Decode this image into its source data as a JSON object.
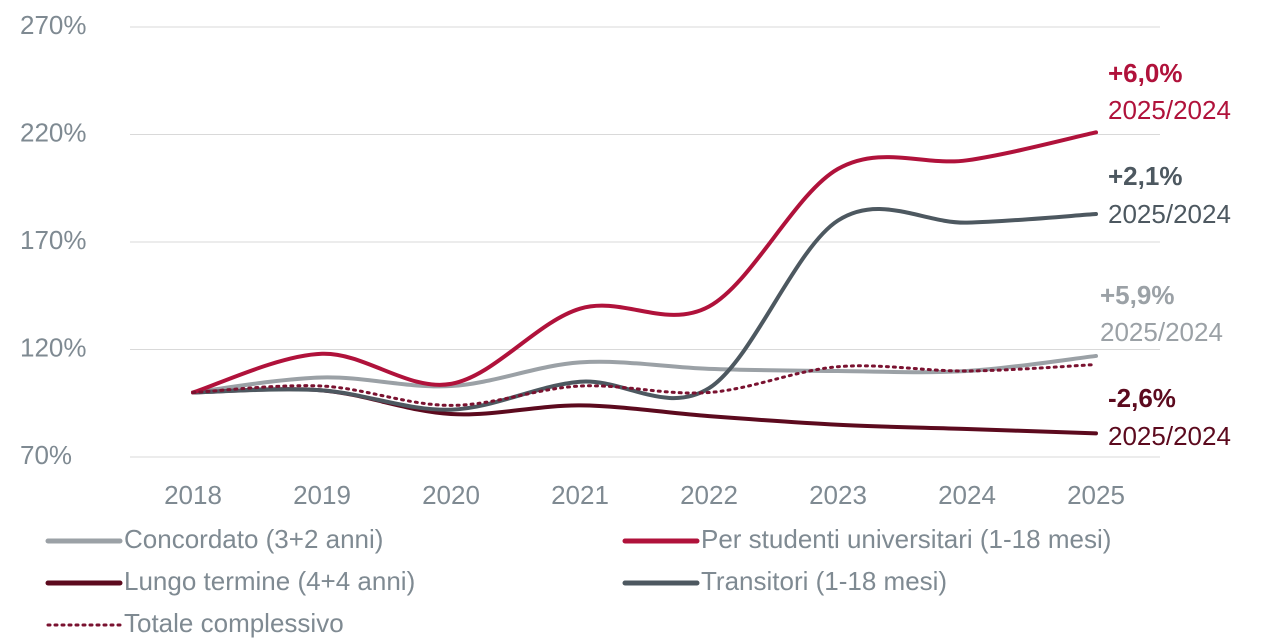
{
  "chart_data": {
    "type": "line",
    "x": [
      "2018",
      "2019",
      "2020",
      "2021",
      "2022",
      "2023",
      "2024",
      "2025"
    ],
    "series": [
      {
        "name": "Concordato (3+2 anni)",
        "color": "#9ba1a6",
        "style": "solid",
        "values": [
          100,
          107,
          103,
          114,
          111,
          110,
          110,
          117
        ]
      },
      {
        "name": "Per studenti universitari (1-18 mesi)",
        "color": "#b0123b",
        "style": "solid",
        "values": [
          100,
          118,
          104,
          139,
          140,
          204,
          208,
          221
        ]
      },
      {
        "name": "Lungo termine (4+4 anni)",
        "color": "#5c0a1e",
        "style": "solid",
        "values": [
          100,
          101,
          90,
          94,
          89,
          85,
          83,
          81
        ]
      },
      {
        "name": "Transitori (1-18 mesi)",
        "color": "#4d5860",
        "style": "solid",
        "values": [
          100,
          101,
          92,
          105,
          102,
          180,
          179,
          183
        ]
      },
      {
        "name": "Totale complessivo",
        "color": "#7a1230",
        "style": "dotted",
        "values": [
          100,
          103,
          94,
          103,
          100,
          112,
          110,
          113
        ]
      }
    ],
    "ylim": [
      70,
      270
    ],
    "yticks": [
      {
        "value": 70,
        "label": "70%"
      },
      {
        "value": 120,
        "label": "120%"
      },
      {
        "value": 170,
        "label": "170%"
      },
      {
        "value": 220,
        "label": "220%"
      },
      {
        "value": 270,
        "label": "270%"
      }
    ],
    "grid": true,
    "annotations": [
      {
        "change": "+6,0%",
        "period": "2025/2024",
        "color": "#b0123b"
      },
      {
        "change": "+2,1%",
        "period": "2025/2024",
        "color": "#4d5860"
      },
      {
        "change": "+5,9%",
        "period": "2025/2024",
        "color": "#9ba1a6"
      },
      {
        "change": "-2,6%",
        "period": "2025/2024",
        "color": "#5c0a1e"
      }
    ]
  }
}
